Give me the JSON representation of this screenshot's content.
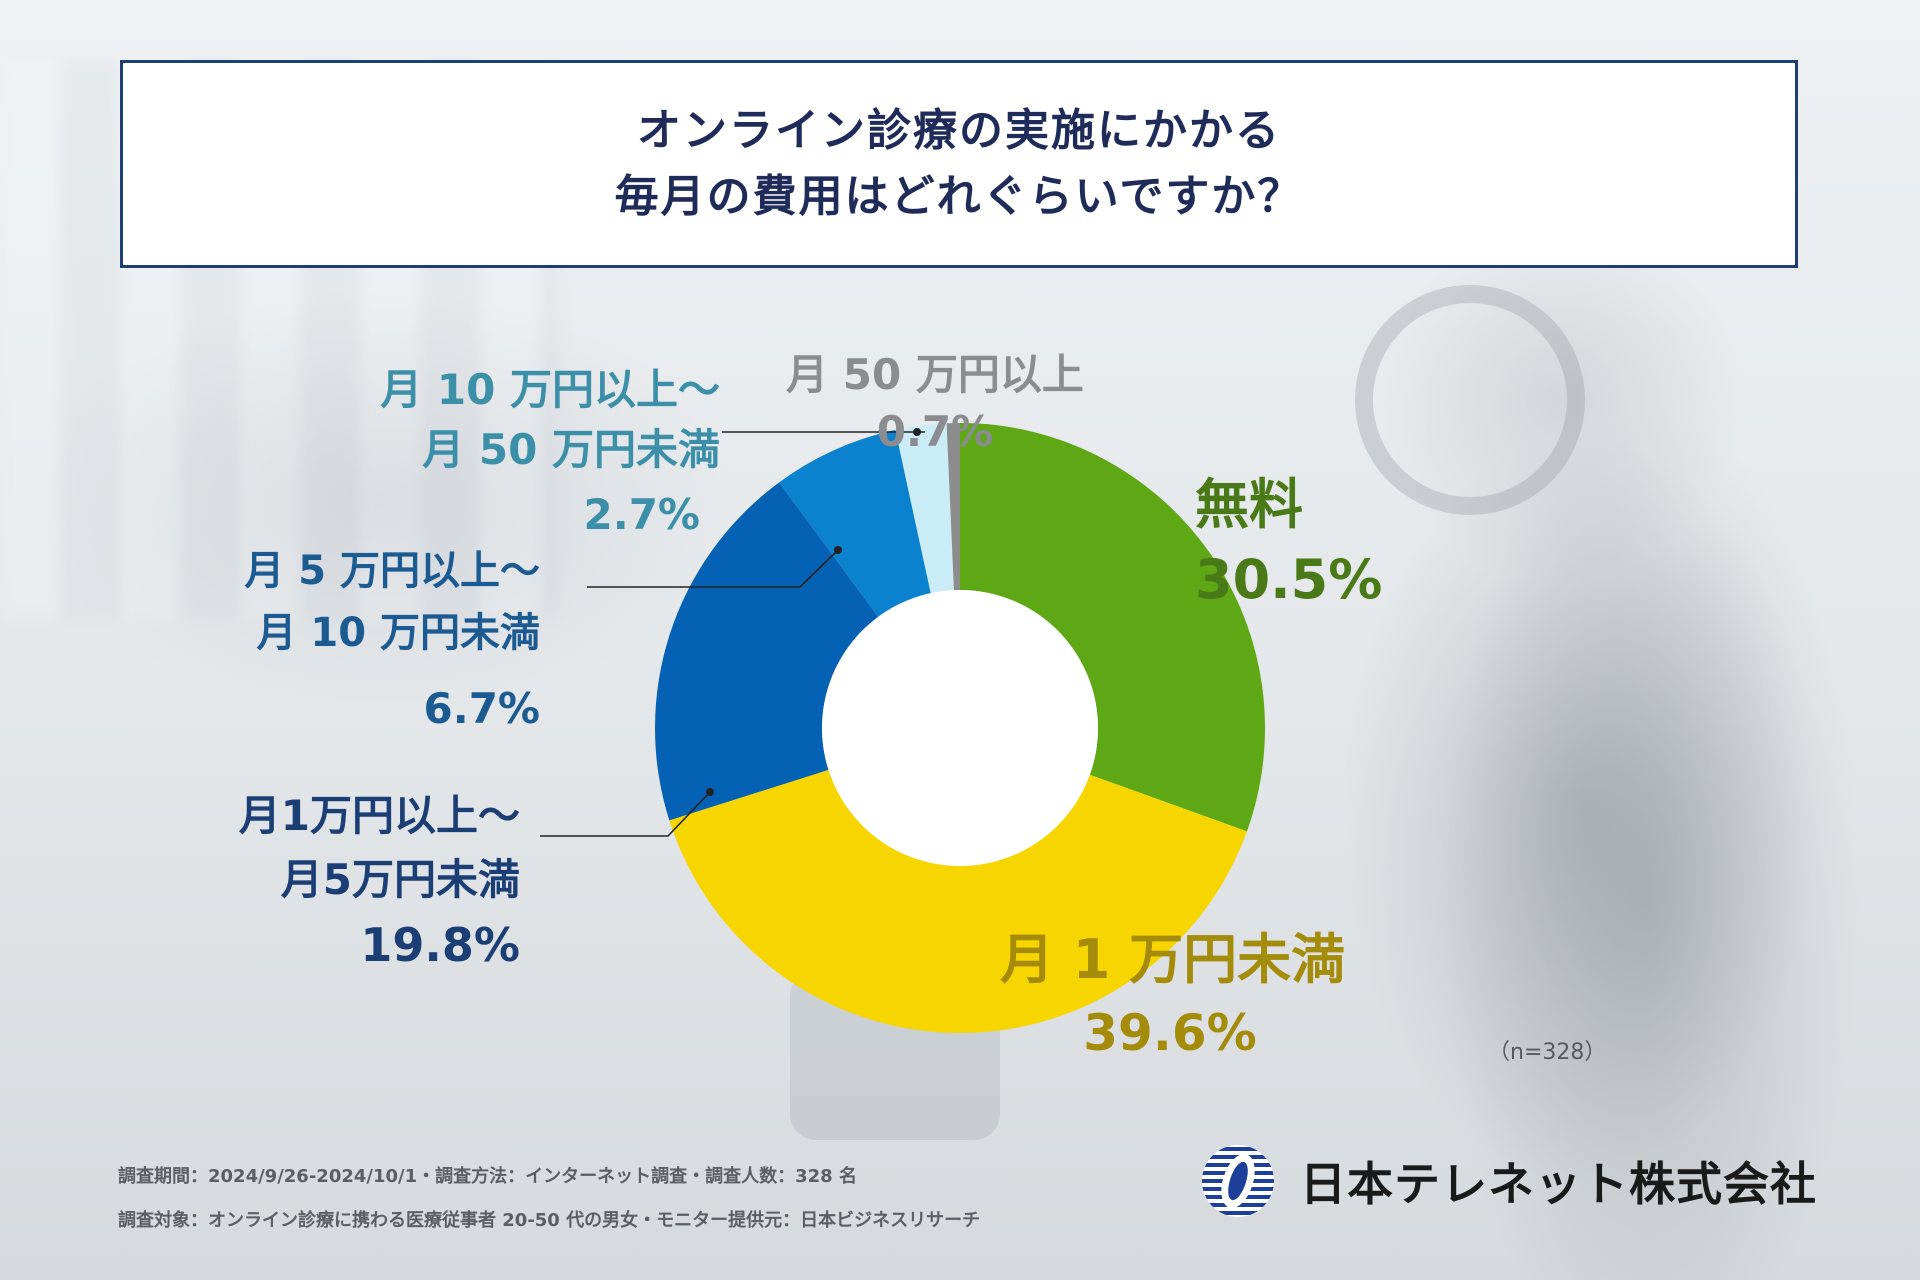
{
  "title": {
    "line1": "オンライン診療の実施にかかる",
    "line2": "毎月の費用はどれぐらいですか？"
  },
  "chart_data": {
    "type": "pie",
    "variant": "donut",
    "title": "オンライン診療の実施にかかる毎月の費用はどれぐらいですか？",
    "unit": "%",
    "slices": [
      {
        "label": "無料",
        "value": 30.5,
        "value_label": "30.5%",
        "color": "#5da814"
      },
      {
        "label": "月 1 万円未満",
        "value": 39.6,
        "value_label": "39.6%",
        "color": "#f7d500"
      },
      {
        "label": "月1万円以上～月5万円未満",
        "value": 19.8,
        "value_label": "19.8%",
        "color": "#0561b3"
      },
      {
        "label": "月 5 万円以上～月 10 万円未満",
        "value": 6.7,
        "value_label": "6.7%",
        "color": "#0b82ce"
      },
      {
        "label": "月 10 万円以上～月 50 万円未満",
        "value": 2.7,
        "value_label": "2.7%",
        "color": "#c9ecf7"
      },
      {
        "label": "月 50 万円以上",
        "value": 0.7,
        "value_label": "0.7%",
        "color": "#8c8c8c"
      }
    ]
  },
  "labels": {
    "free": {
      "name": "無料",
      "value": "30.5%"
    },
    "under1": {
      "name": "月 1 万円未満",
      "value": "39.6%"
    },
    "r1to5": {
      "line1": "月1万円以上～",
      "line2": "月5万円未満",
      "value": "19.8%"
    },
    "r5to10": {
      "line1": "月 5 万円以上～",
      "line2": "月 10 万円未満",
      "value": "6.7%"
    },
    "r10to50": {
      "line1": "月 10 万円以上～",
      "line2": "月 50 万円未満",
      "value": "2.7%"
    },
    "over50": {
      "name": "月 50 万円以上",
      "value": "0.7%"
    }
  },
  "sample_note": "（n=328）",
  "footer": {
    "line1": "調査期間：2024/9/26-2024/10/1・調査方法：インターネット調査・調査人数：328 名",
    "line2": "調査対象：オンライン診療に携わる医療従事者 20‐50 代の男女・モニター提供元：日本ビジネスリサーチ"
  },
  "logo": {
    "company": "日本テレネット株式会社",
    "mark_icon": "company-logo-icon"
  }
}
